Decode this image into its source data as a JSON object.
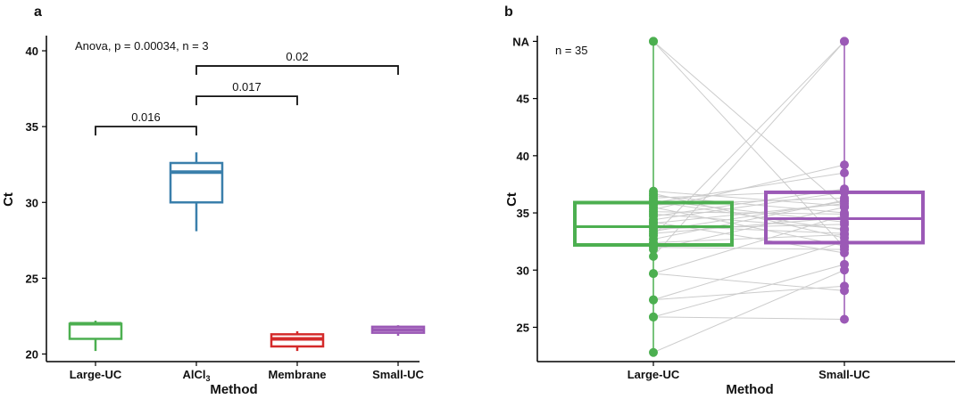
{
  "chart_data": [
    {
      "type": "box",
      "panel_label": "a",
      "xlabel": "Method",
      "ylabel": "Ct",
      "ylim": [
        19.5,
        41
      ],
      "yticks": [
        20,
        25,
        30,
        35,
        40
      ],
      "annotation": "Anova, p = 0.00034, n = 3",
      "grid": false,
      "boxes": [
        {
          "category": "Large-UC",
          "color": "#4caf50",
          "min": 20.2,
          "q1": 21.0,
          "median": 22.0,
          "q3": 22.0,
          "max": 22.2
        },
        {
          "category": "AlCl",
          "category_sub": "3",
          "color": "#3a7fab",
          "min": 28.1,
          "q1": 30.0,
          "median": 32.0,
          "q3": 32.6,
          "max": 33.3
        },
        {
          "category": "Membrane",
          "color": "#d42a2a",
          "min": 20.2,
          "q1": 20.5,
          "median": 21.0,
          "q3": 21.3,
          "max": 21.5
        },
        {
          "category": "Small-UC",
          "color": "#9b59b6",
          "min": 21.2,
          "q1": 21.4,
          "median": 21.6,
          "q3": 21.8,
          "max": 21.9
        }
      ],
      "comparisons": [
        {
          "from": 0,
          "to": 1,
          "label": "0.016",
          "y": 35.0
        },
        {
          "from": 1,
          "to": 2,
          "label": "0.017",
          "y": 37.0
        },
        {
          "from": 1,
          "to": 3,
          "label": "0.02",
          "y": 39.0
        }
      ]
    },
    {
      "type": "box-paired",
      "panel_label": "b",
      "xlabel": "Method",
      "ylabel": "Ct",
      "ylim": [
        22,
        50.5
      ],
      "yticks": [
        25,
        30,
        35,
        40,
        45
      ],
      "ytick_labels": [
        "25",
        "30",
        "35",
        "40",
        "45"
      ],
      "na_tick": {
        "value": 50,
        "label": "NA"
      },
      "annotation": "n = 35",
      "grid": false,
      "categories": [
        "Large-UC",
        "Small-UC"
      ],
      "boxes": [
        {
          "category": "Large-UC",
          "color": "#4caf50",
          "q1": 32.2,
          "median": 33.8,
          "q3": 35.9
        },
        {
          "category": "Small-UC",
          "color": "#9b59b6",
          "q1": 32.4,
          "median": 34.5,
          "q3": 36.8
        }
      ],
      "line_color": "#cccccc",
      "pairs": [
        [
          50,
          35.5
        ],
        [
          50,
          32.0
        ],
        [
          22.8,
          30.0
        ],
        [
          25.9,
          30.5
        ],
        [
          25.9,
          25.7
        ],
        [
          27.4,
          28.6
        ],
        [
          27.4,
          32.5
        ],
        [
          29.7,
          28.2
        ],
        [
          29.7,
          34.8
        ],
        [
          31.2,
          50
        ],
        [
          31.8,
          35.5
        ],
        [
          32.0,
          31.8
        ],
        [
          32.4,
          33.1
        ],
        [
          32.7,
          36.1
        ],
        [
          33.0,
          50
        ],
        [
          33.4,
          36.0
        ],
        [
          33.6,
          34.0
        ],
        [
          33.9,
          33.2
        ],
        [
          34.1,
          35.8
        ],
        [
          34.4,
          36.8
        ],
        [
          34.7,
          37.1
        ],
        [
          34.9,
          33.6
        ],
        [
          35.1,
          34.9
        ],
        [
          35.3,
          39.2
        ],
        [
          35.5,
          32.1
        ],
        [
          35.7,
          36.3
        ],
        [
          35.9,
          38.5
        ],
        [
          36.1,
          34.2
        ],
        [
          36.3,
          37.0
        ],
        [
          36.5,
          35.0
        ],
        [
          36.7,
          32.8
        ],
        [
          36.9,
          35.6
        ],
        [
          34.2,
          31.5
        ],
        [
          33.2,
          34.6
        ],
        [
          36.0,
          33.5
        ]
      ]
    }
  ]
}
